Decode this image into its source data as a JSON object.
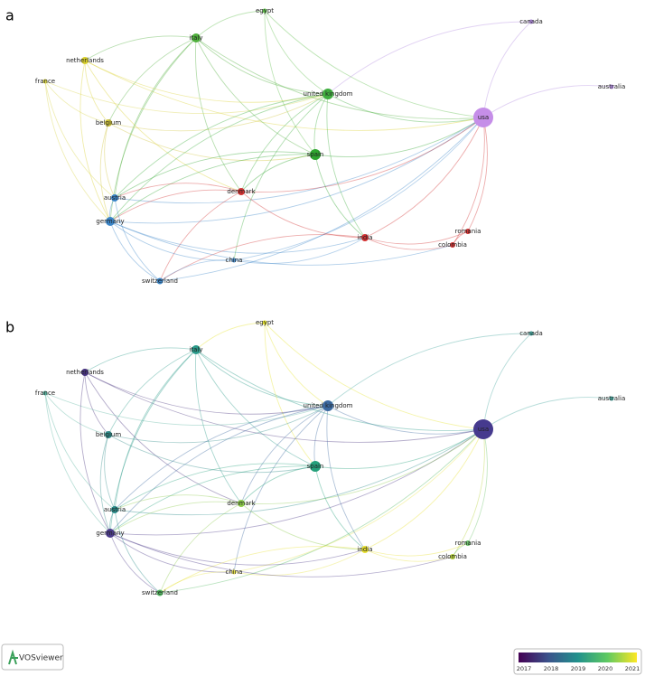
{
  "networks": [
    {
      "label": "a",
      "nodes": [
        "egypt",
        "italy",
        "netherlands",
        "france",
        "belgium",
        "united kingdom",
        "canada",
        "australia",
        "usa",
        "spain",
        "denmark",
        "austria",
        "germany",
        "india",
        "romania",
        "colombia",
        "china",
        "switzerland"
      ]
    },
    {
      "label": "b",
      "nodes": [
        "egypt",
        "italy",
        "netherlands",
        "france",
        "belgium",
        "united kingdom",
        "canada",
        "australia",
        "usa",
        "spain",
        "denmark",
        "austria",
        "germany",
        "india",
        "romania",
        "colombia",
        "china",
        "switzerland"
      ]
    }
  ],
  "legend": {
    "ticks": [
      2017,
      2018,
      2019,
      2020,
      2021
    ]
  },
  "logo": "VOSviewer"
}
